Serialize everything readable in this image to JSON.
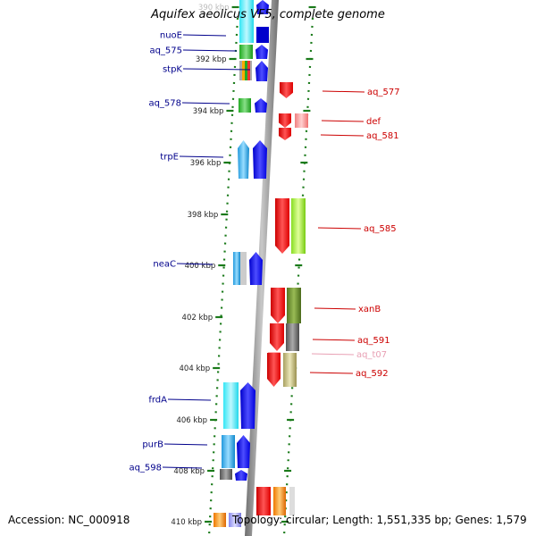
{
  "title": "Aquifex aeolicus VF5, complete genome",
  "footer": {
    "accession": "Accession: NC_000918",
    "summary": "Topology: circular; Length: 1,551,335 bp; Genes: 1,579"
  },
  "colors": {
    "forward_label": "#00008b",
    "reverse_label": "#cc0000",
    "trna_label": "#e8a0b4",
    "backbone": "#8c8c8c",
    "tick_dots": "#1a7a1a"
  },
  "ticks": [
    {
      "label": "390 kbp",
      "faded": true
    },
    {
      "label": "392 kbp"
    },
    {
      "label": "394 kbp"
    },
    {
      "label": "396 kbp"
    },
    {
      "label": "398 kbp"
    },
    {
      "label": "400 kbp"
    },
    {
      "label": "402 kbp"
    },
    {
      "label": "404 kbp"
    },
    {
      "label": "406 kbp"
    },
    {
      "label": "408 kbp"
    },
    {
      "label": "410 kbp"
    }
  ],
  "genes_forward": [
    {
      "label": "nuoE"
    },
    {
      "label": "aq_575"
    },
    {
      "label": "stpK"
    },
    {
      "label": "aq_578"
    },
    {
      "label": "trpE"
    },
    {
      "label": "neaC"
    },
    {
      "label": "frdA"
    },
    {
      "label": "purB"
    },
    {
      "label": "aq_598"
    }
  ],
  "genes_reverse": [
    {
      "label": "aq_577"
    },
    {
      "label": "def"
    },
    {
      "label": "aq_581"
    },
    {
      "label": "aq_585"
    },
    {
      "label": "xanB"
    },
    {
      "label": "aq_591"
    },
    {
      "label": "aq_t07",
      "trna": true
    },
    {
      "label": "aq_592"
    }
  ]
}
